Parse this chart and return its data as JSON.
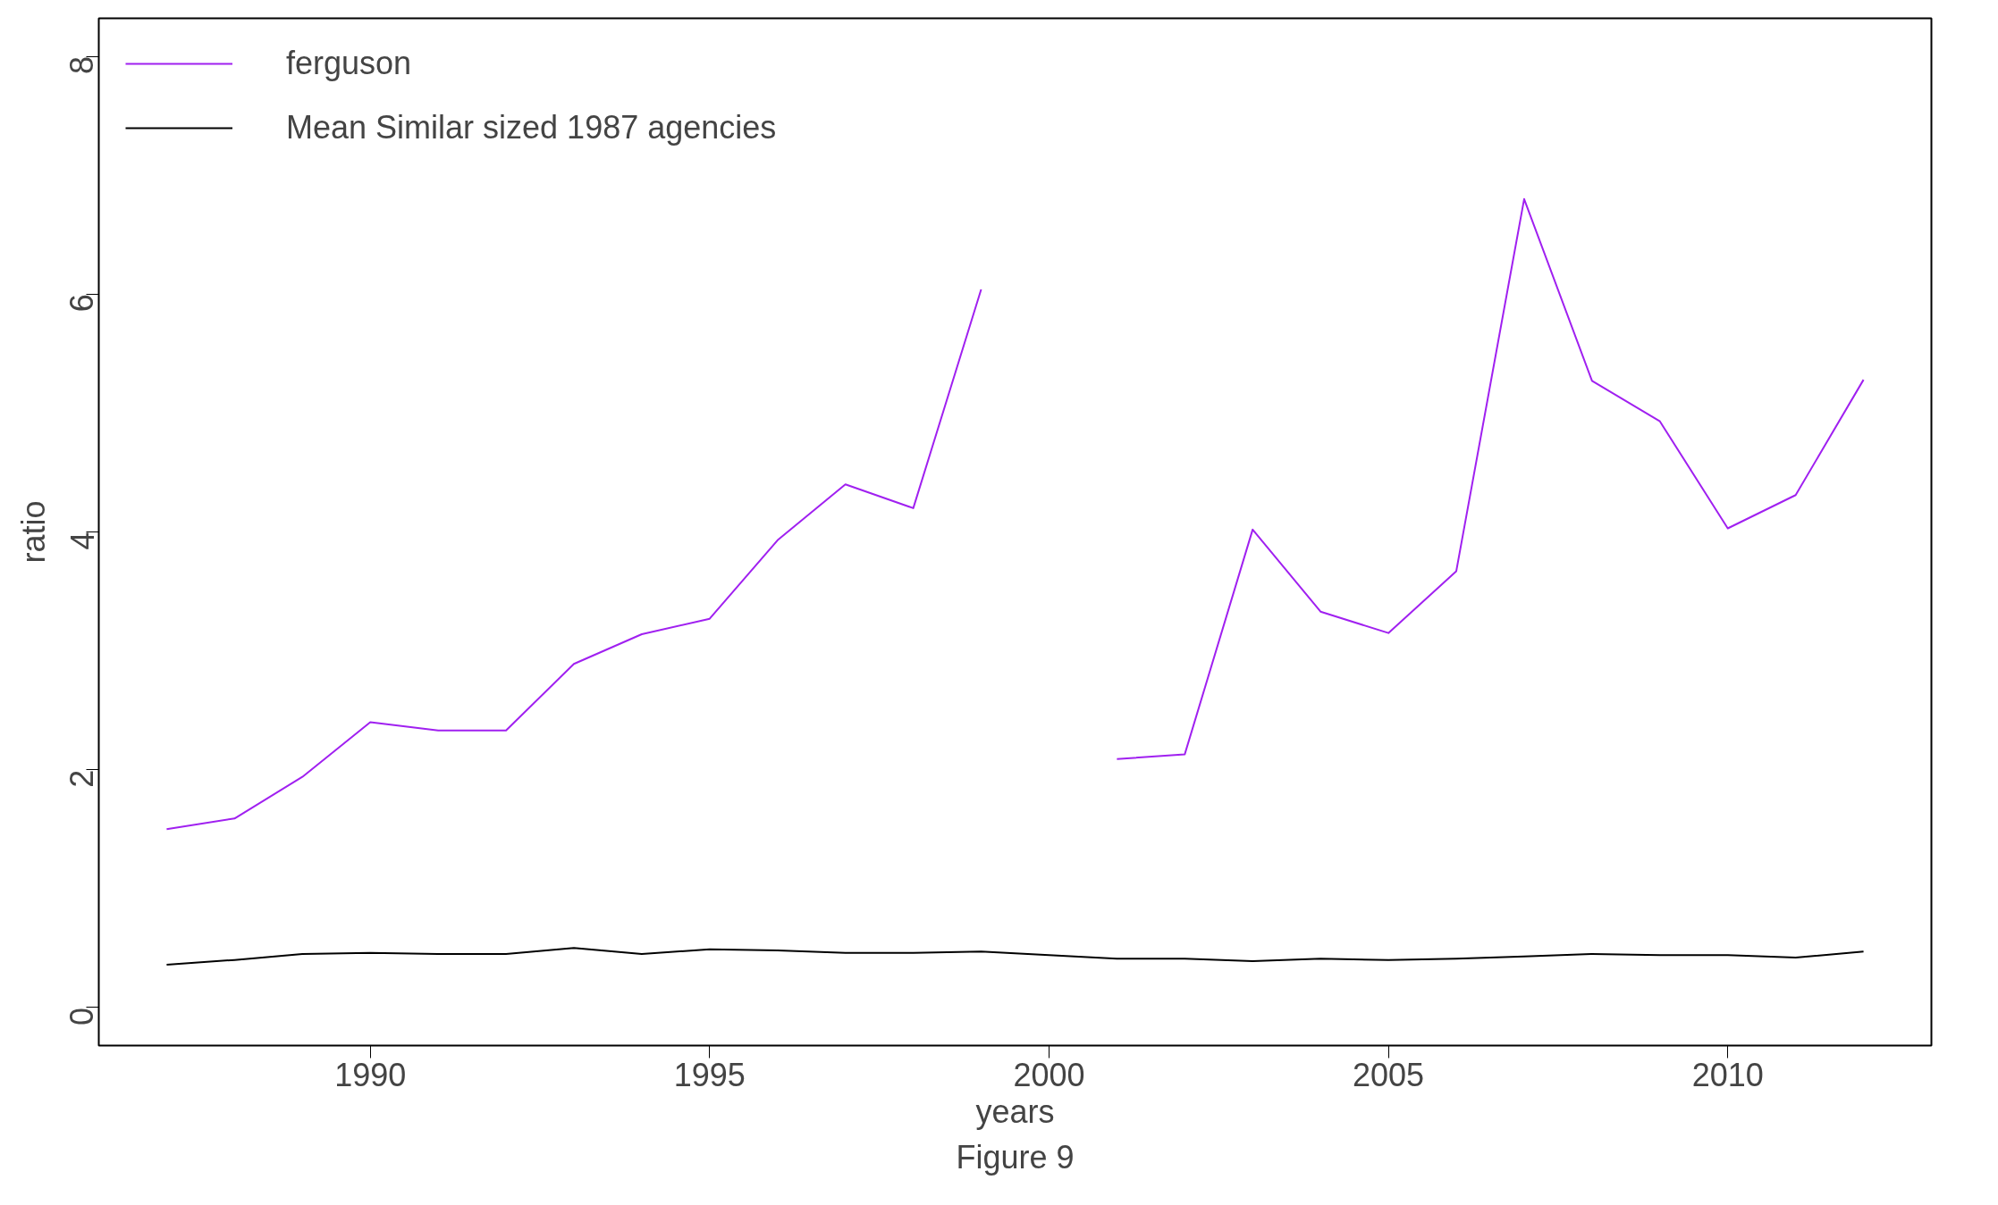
{
  "chart_data": {
    "type": "line",
    "xlabel": "years",
    "ylabel": "ratio",
    "x": [
      1987,
      1988,
      1989,
      1990,
      1991,
      1992,
      1993,
      1994,
      1995,
      1996,
      1997,
      1998,
      1999,
      2000,
      2001,
      2002,
      2003,
      2004,
      2005,
      2006,
      2007,
      2008,
      2009,
      2010,
      2011,
      2012
    ],
    "series": [
      {
        "name": "ferguson",
        "color": "#a020f0",
        "values": [
          1.5,
          1.59,
          1.94,
          2.4,
          2.33,
          2.33,
          2.89,
          3.14,
          3.27,
          3.93,
          4.4,
          4.2,
          6.04,
          null,
          2.09,
          2.13,
          4.02,
          3.33,
          3.15,
          3.67,
          6.8,
          5.27,
          4.93,
          4.03,
          4.31,
          5.28
        ]
      },
      {
        "name": "Mean Similar sized 1987 agencies",
        "color": "#000000",
        "values": [
          0.36,
          0.4,
          0.45,
          0.46,
          0.45,
          0.45,
          0.5,
          0.45,
          0.49,
          0.48,
          0.46,
          0.46,
          0.47,
          0.44,
          0.41,
          0.41,
          0.39,
          0.41,
          0.4,
          0.41,
          0.43,
          0.45,
          0.44,
          0.44,
          0.42,
          0.47
        ]
      }
    ],
    "xlim": [
      1986,
      2013
    ],
    "ylim": [
      -0.32,
      8.32
    ],
    "xticks": [
      1990,
      1995,
      2000,
      2005,
      2010
    ],
    "yticks": [
      0,
      2,
      4,
      6,
      8
    ],
    "grid": false,
    "legend": "top left",
    "marker": "none",
    "line_style": "solid",
    "annotations": [
      "Figure 9"
    ]
  }
}
